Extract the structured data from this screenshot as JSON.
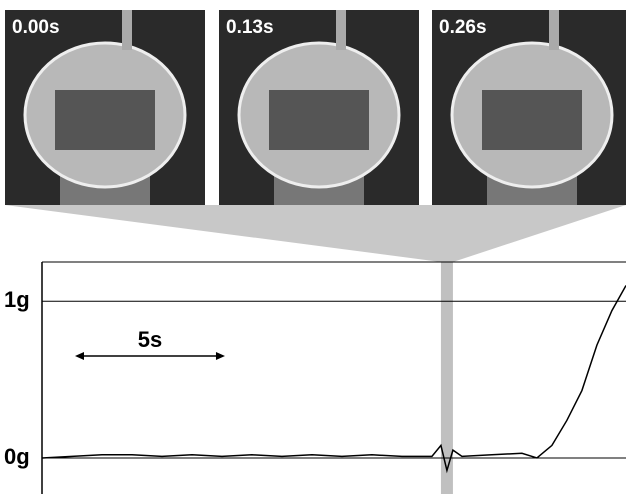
{
  "frames": [
    {
      "label": "0.00s"
    },
    {
      "label": "0.13s"
    },
    {
      "label": "0.26s"
    }
  ],
  "chart_data": {
    "type": "line",
    "x": [
      0,
      1,
      2,
      3,
      4,
      5,
      6,
      7,
      8,
      9,
      10,
      11,
      12,
      13,
      13.3,
      13.5,
      13.7,
      14,
      15,
      16,
      16.5,
      17,
      17.5,
      18,
      18.5,
      19,
      19.47
    ],
    "series": [
      {
        "color": "#000000",
        "values": [
          0,
          0.01,
          0.02,
          0.02,
          0.01,
          0.02,
          0.01,
          0.02,
          0.01,
          0.02,
          0.01,
          0.02,
          0.01,
          0.01,
          0.08,
          -0.08,
          0.05,
          0.01,
          0.02,
          0.03,
          0,
          0.08,
          0.24,
          0.43,
          0.72,
          0.94,
          1.1
        ]
      }
    ],
    "xlim": [
      0,
      19.47
    ],
    "ylim": [
      -0.23,
      1.25
    ],
    "yticks": [
      {
        "value": 1,
        "label": "1g"
      },
      {
        "value": 0,
        "label": "0g"
      }
    ],
    "annotation": "5s",
    "scale_bar": 5,
    "highlight_x": 13.5
  }
}
